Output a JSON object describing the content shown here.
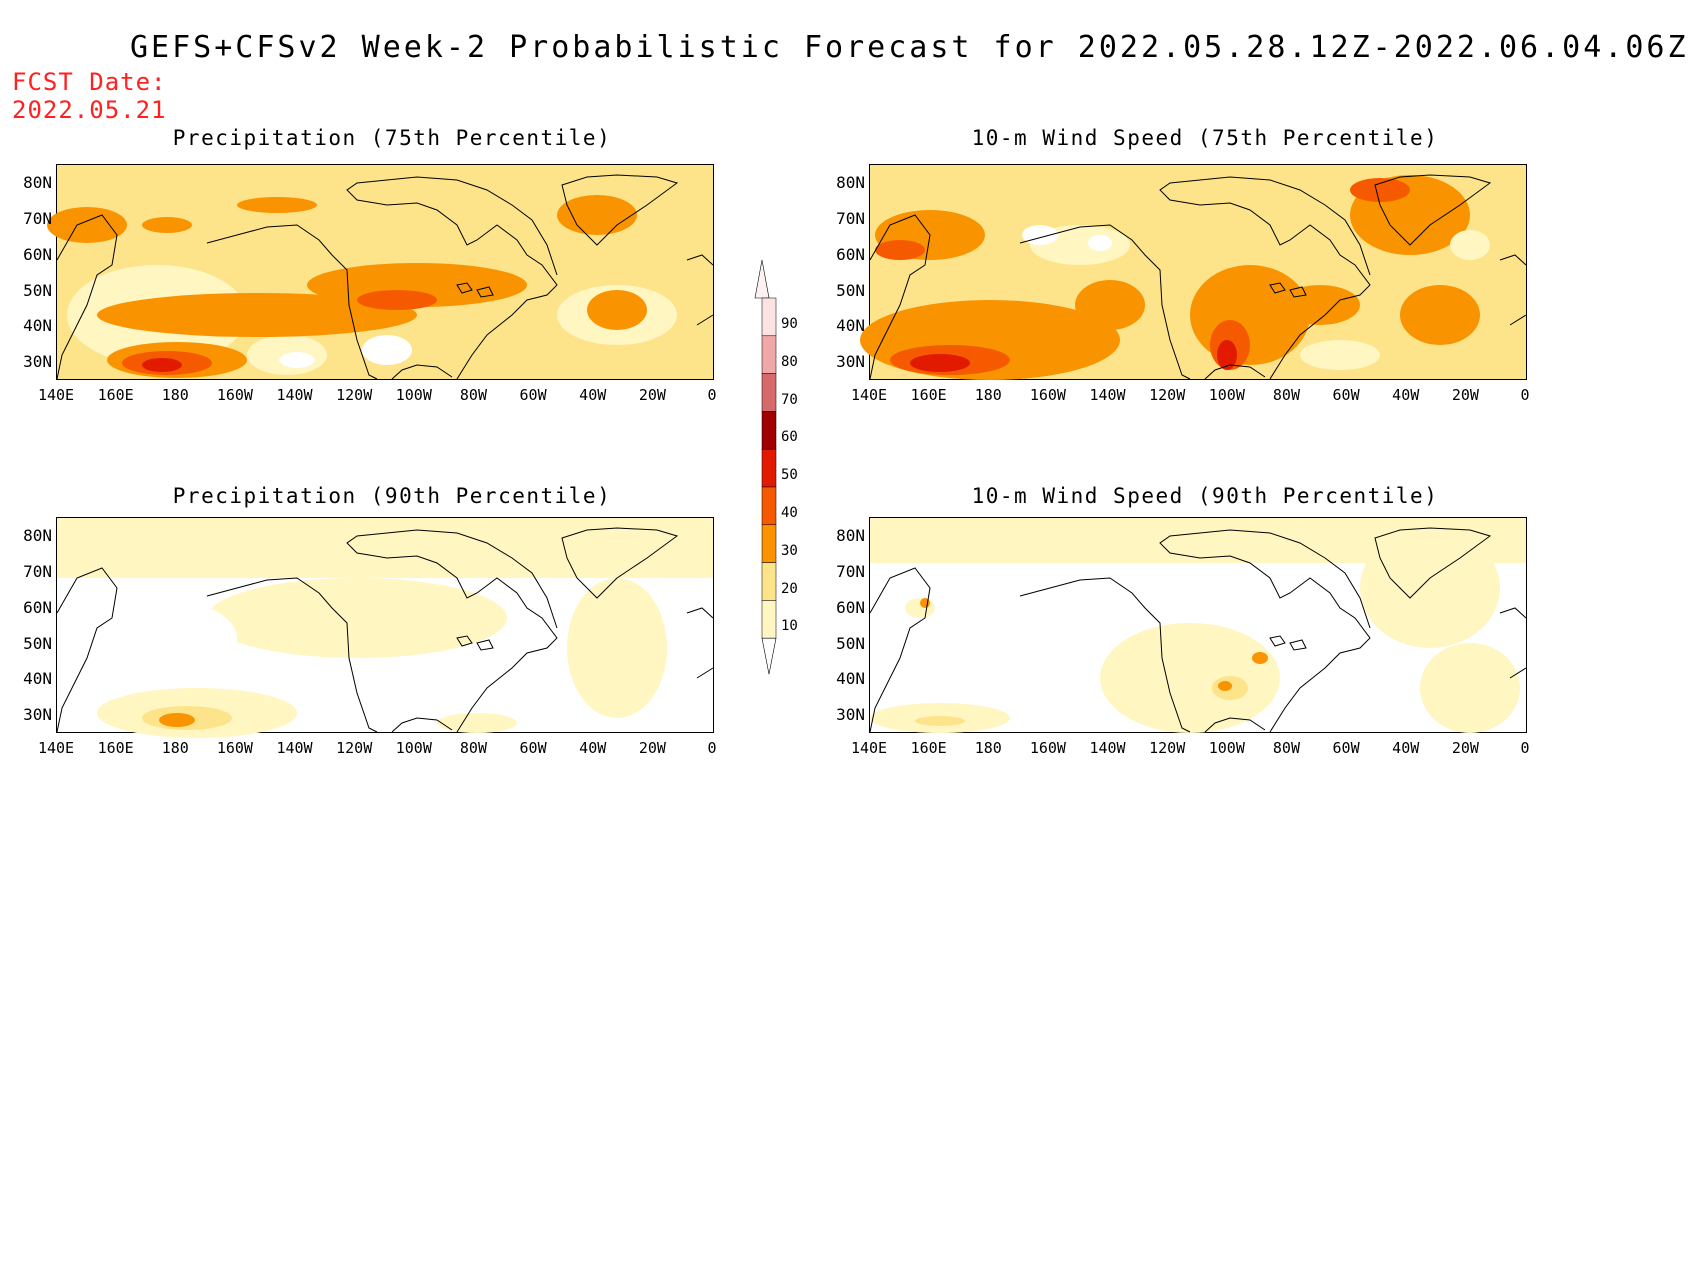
{
  "title": "GEFS+CFSv2 Week-2 Probabilistic Forecast for 2022.05.28.12Z-2022.06.04.06Z",
  "fcst_label": "FCST Date:",
  "fcst_date": "2022.05.21",
  "lat_labels": [
    "80N",
    "70N",
    "60N",
    "50N",
    "40N",
    "30N"
  ],
  "lon_labels": [
    "140E",
    "160E",
    "180",
    "160W",
    "140W",
    "120W",
    "100W",
    "80W",
    "60W",
    "40W",
    "20W",
    "0"
  ],
  "panels": [
    {
      "id": "precip-75",
      "title": "Precipitation (75th Percentile)"
    },
    {
      "id": "wind-75",
      "title": "10-m Wind Speed (75th Percentile)"
    },
    {
      "id": "precip-90",
      "title": "Precipitation (90th Percentile)"
    },
    {
      "id": "wind-90",
      "title": "10-m Wind Speed (90th Percentile)"
    }
  ],
  "colorbar": {
    "levels": [
      "90",
      "80",
      "70",
      "60",
      "50",
      "40",
      "30",
      "20",
      "10"
    ],
    "colors": [
      "#fbe3e3",
      "#f0a7a7",
      "#d66a6a",
      "#a10000",
      "#e21b00",
      "#f65a00",
      "#f99400",
      "#fde48a",
      "#fff6c2"
    ]
  }
}
